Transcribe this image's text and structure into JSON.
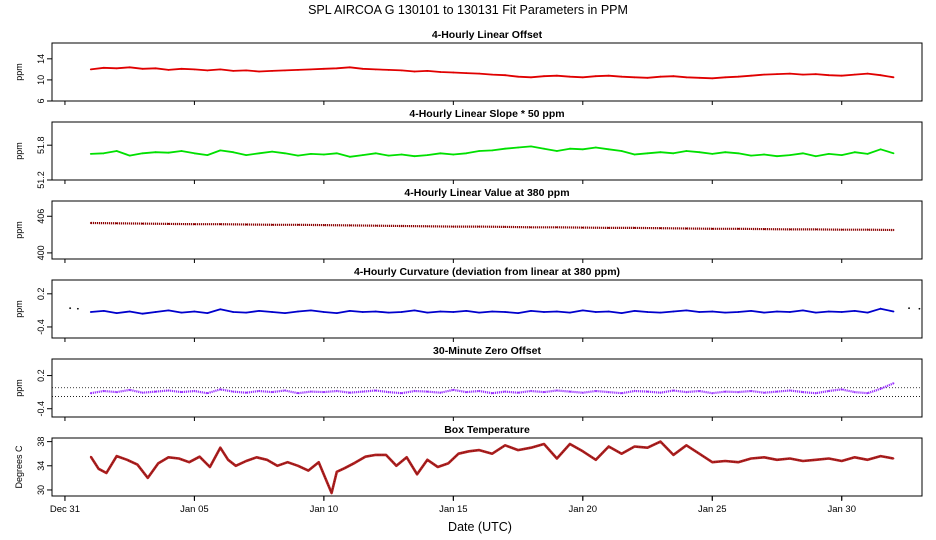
{
  "figure": {
    "title": "SPL    AIRCOA G    130101 to 130131    Fit Parameters in PPM",
    "xlabel": "Date (UTC)",
    "x_ticks": [
      "Dec 31",
      "Jan 05",
      "Jan 10",
      "Jan 15",
      "Jan 20",
      "Jan 25",
      "Jan 30"
    ]
  },
  "chart_data": [
    {
      "type": "line",
      "title": "4-Hourly Linear Offset",
      "ylabel": "ppm",
      "y_ticks": [
        "6",
        "10",
        "14"
      ],
      "ylim": [
        6,
        17
      ],
      "xlim": [
        -0.5,
        33.1
      ],
      "color": "#e00000",
      "style": "line",
      "series": [
        {
          "x": [
            1,
            1.5,
            2,
            2.5,
            3,
            3.5,
            4,
            4.5,
            5,
            5.5,
            6,
            6.5,
            7,
            7.5,
            8,
            8.5,
            9,
            9.5,
            10,
            10.5,
            11,
            11.5,
            12,
            12.5,
            13,
            13.5,
            14,
            14.5,
            15,
            15.5,
            16,
            16.5,
            17,
            17.5,
            18,
            18.5,
            19,
            19.5,
            20,
            20.5,
            21,
            21.5,
            22,
            22.5,
            23,
            23.5,
            24,
            24.5,
            25,
            25.5,
            26,
            26.5,
            27,
            27.5,
            28,
            28.5,
            29,
            29.5,
            30,
            30.5,
            31,
            31.5,
            32
          ],
          "y": [
            12.0,
            12.3,
            12.2,
            12.4,
            12.1,
            12.2,
            11.9,
            12.1,
            12.0,
            11.8,
            12.0,
            11.7,
            11.8,
            11.6,
            11.7,
            11.8,
            11.9,
            12.0,
            12.1,
            12.2,
            12.4,
            12.1,
            12.0,
            11.9,
            11.8,
            11.6,
            11.7,
            11.5,
            11.4,
            11.3,
            11.2,
            11.0,
            10.9,
            10.6,
            10.5,
            10.7,
            10.8,
            10.6,
            10.5,
            10.7,
            10.8,
            10.6,
            10.5,
            10.4,
            10.6,
            10.7,
            10.5,
            10.4,
            10.3,
            10.5,
            10.6,
            10.8,
            11.0,
            11.1,
            11.2,
            11.0,
            11.1,
            10.9,
            10.8,
            11.0,
            11.2,
            10.9,
            10.5
          ]
        }
      ]
    },
    {
      "type": "line",
      "title": "4-Hourly Linear Slope * 50 ppm",
      "ylabel": "ppm",
      "y_ticks": [
        "51.2",
        "51.8"
      ],
      "ylim": [
        51.2,
        52.2
      ],
      "xlim": [
        -0.5,
        33.1
      ],
      "color": "#00e000",
      "style": "line",
      "series": [
        {
          "x": [
            1,
            1.5,
            2,
            2.5,
            3,
            3.5,
            4,
            4.5,
            5,
            5.5,
            6,
            6.5,
            7,
            7.5,
            8,
            8.5,
            9,
            9.5,
            10,
            10.5,
            11,
            11.5,
            12,
            12.5,
            13,
            13.5,
            14,
            14.5,
            15,
            15.5,
            16,
            16.5,
            17,
            17.5,
            18,
            18.5,
            19,
            19.5,
            20,
            20.5,
            21,
            21.5,
            22,
            22.5,
            23,
            23.5,
            24,
            24.5,
            25,
            25.5,
            26,
            26.5,
            27,
            27.5,
            28,
            28.5,
            29,
            29.5,
            30,
            30.5,
            31,
            31.5,
            32
          ],
          "y": [
            51.65,
            51.66,
            51.7,
            51.62,
            51.66,
            51.68,
            51.67,
            51.7,
            51.66,
            51.63,
            51.71,
            51.68,
            51.63,
            51.66,
            51.69,
            51.66,
            51.62,
            51.65,
            51.64,
            51.66,
            51.6,
            51.63,
            51.66,
            51.62,
            51.64,
            51.61,
            51.63,
            51.66,
            51.64,
            51.66,
            51.7,
            51.71,
            51.74,
            51.76,
            51.78,
            51.74,
            51.7,
            51.74,
            51.73,
            51.76,
            51.73,
            51.7,
            51.64,
            51.66,
            51.68,
            51.66,
            51.7,
            51.68,
            51.65,
            51.68,
            51.66,
            51.62,
            51.64,
            51.61,
            51.63,
            51.66,
            51.61,
            51.65,
            51.63,
            51.68,
            51.65,
            51.73,
            51.66
          ]
        }
      ]
    },
    {
      "type": "scatter",
      "title": "4-Hourly Linear Value at 380 ppm",
      "ylabel": "ppm",
      "y_ticks": [
        "400",
        "406"
      ],
      "ylim": [
        399,
        408.5
      ],
      "xlim": [
        -0.5,
        33.1
      ],
      "color": "#8b0000",
      "style": "dense",
      "series": [
        {
          "x": [
            1,
            2,
            3,
            4,
            5,
            6,
            7,
            8,
            9,
            10,
            11,
            12,
            13,
            14,
            15,
            16,
            17,
            18,
            19,
            20,
            21,
            22,
            23,
            24,
            25,
            26,
            27,
            28,
            29,
            30,
            31,
            32
          ],
          "y": [
            404.9,
            404.85,
            404.8,
            404.75,
            404.7,
            404.7,
            404.65,
            404.6,
            404.6,
            404.55,
            404.5,
            404.45,
            404.4,
            404.35,
            404.3,
            404.3,
            404.25,
            404.2,
            404.2,
            404.15,
            404.1,
            404.1,
            404.05,
            404.0,
            403.95,
            403.95,
            403.9,
            403.85,
            403.85,
            403.8,
            403.8,
            403.75
          ]
        }
      ]
    },
    {
      "type": "line",
      "title": "4-Hourly Curvature (deviation from linear at 380 ppm)",
      "ylabel": "ppm",
      "y_ticks": [
        "-0.4",
        "0.2"
      ],
      "ylim": [
        -0.6,
        0.45
      ],
      "xlim": [
        -0.5,
        33.1
      ],
      "color": "#0000cc",
      "style": "line",
      "series": [
        {
          "x": [
            1,
            1.5,
            2,
            2.5,
            3,
            3.5,
            4,
            4.5,
            5,
            5.5,
            6,
            6.5,
            7,
            7.5,
            8,
            8.5,
            9,
            9.5,
            10,
            10.5,
            11,
            11.5,
            12,
            12.5,
            13,
            13.5,
            14,
            14.5,
            15,
            15.5,
            16,
            16.5,
            17,
            17.5,
            18,
            18.5,
            19,
            19.5,
            20,
            20.5,
            21,
            21.5,
            22,
            22.5,
            23,
            23.5,
            24,
            24.5,
            25,
            25.5,
            26,
            26.5,
            27,
            27.5,
            28,
            28.5,
            29,
            29.5,
            30,
            30.5,
            31,
            31.5,
            32
          ],
          "y": [
            -0.13,
            -0.11,
            -0.15,
            -0.12,
            -0.16,
            -0.13,
            -0.1,
            -0.14,
            -0.12,
            -0.15,
            -0.08,
            -0.13,
            -0.14,
            -0.11,
            -0.13,
            -0.15,
            -0.12,
            -0.1,
            -0.13,
            -0.15,
            -0.11,
            -0.13,
            -0.12,
            -0.14,
            -0.13,
            -0.1,
            -0.14,
            -0.12,
            -0.13,
            -0.11,
            -0.14,
            -0.12,
            -0.13,
            -0.15,
            -0.11,
            -0.13,
            -0.12,
            -0.14,
            -0.1,
            -0.13,
            -0.12,
            -0.15,
            -0.11,
            -0.13,
            -0.14,
            -0.12,
            -0.1,
            -0.13,
            -0.12,
            -0.14,
            -0.13,
            -0.11,
            -0.14,
            -0.12,
            -0.13,
            -0.1,
            -0.14,
            -0.12,
            -0.13,
            -0.11,
            -0.14,
            -0.07,
            -0.12
          ]
        }
      ],
      "sparse_points": {
        "x": [
          0.2,
          0.5,
          32.6,
          33.0
        ],
        "y": [
          -0.06,
          -0.07,
          -0.06,
          -0.07
        ]
      }
    },
    {
      "type": "scatter",
      "title": "30-Minute Zero Offset",
      "ylabel": "ppm",
      "y_ticks": [
        "-0.4",
        "0.2"
      ],
      "ylim": [
        -0.55,
        0.5
      ],
      "xlim": [
        -0.5,
        33.1
      ],
      "color": "#9a30ff",
      "style": "dense",
      "reference_lines": [
        -0.02,
        -0.18
      ],
      "series": [
        {
          "x": [
            1,
            1.5,
            2,
            2.5,
            3,
            3.5,
            4,
            4.5,
            5,
            5.5,
            6,
            6.5,
            7,
            7.5,
            8,
            8.5,
            9,
            9.5,
            10,
            10.5,
            11,
            11.5,
            12,
            12.5,
            13,
            13.5,
            14,
            14.5,
            15,
            15.5,
            16,
            16.5,
            17,
            17.5,
            18,
            18.5,
            19,
            19.5,
            20,
            20.5,
            21,
            21.5,
            22,
            22.5,
            23,
            23.5,
            24,
            24.5,
            25,
            25.5,
            26,
            26.5,
            27,
            27.5,
            28,
            28.5,
            29,
            29.5,
            30,
            30.5,
            31,
            31.5,
            32
          ],
          "y": [
            -0.12,
            -0.08,
            -0.1,
            -0.06,
            -0.11,
            -0.09,
            -0.07,
            -0.1,
            -0.08,
            -0.12,
            -0.05,
            -0.09,
            -0.11,
            -0.08,
            -0.1,
            -0.07,
            -0.12,
            -0.09,
            -0.1,
            -0.08,
            -0.11,
            -0.09,
            -0.07,
            -0.1,
            -0.12,
            -0.08,
            -0.09,
            -0.11,
            -0.06,
            -0.1,
            -0.08,
            -0.12,
            -0.09,
            -0.11,
            -0.08,
            -0.1,
            -0.07,
            -0.09,
            -0.11,
            -0.08,
            -0.1,
            -0.12,
            -0.08,
            -0.09,
            -0.11,
            -0.07,
            -0.1,
            -0.08,
            -0.12,
            -0.09,
            -0.1,
            -0.08,
            -0.11,
            -0.09,
            -0.07,
            -0.1,
            -0.12,
            -0.08,
            -0.05,
            -0.1,
            -0.12,
            -0.04,
            0.06
          ]
        }
      ]
    },
    {
      "type": "line",
      "title": "Box Temperature",
      "ylabel": "Degrees C",
      "y_ticks": [
        "30",
        "34",
        "38"
      ],
      "ylim": [
        29,
        38.6
      ],
      "xlim": [
        -0.5,
        33.1
      ],
      "color": "#b02020",
      "style": "thick",
      "series": [
        {
          "x": [
            1,
            1.3,
            1.6,
            2,
            2.4,
            2.8,
            3.2,
            3.6,
            4,
            4.4,
            4.8,
            5.2,
            5.6,
            6,
            6.3,
            6.6,
            7,
            7.4,
            7.8,
            8.2,
            8.6,
            9,
            9.4,
            9.8,
            10.1,
            10.3,
            10.5,
            10.8,
            11.2,
            11.6,
            12,
            12.4,
            12.8,
            13.2,
            13.6,
            14,
            14.4,
            14.8,
            15.2,
            15.6,
            16,
            16.5,
            17,
            17.5,
            18,
            18.5,
            19,
            19.5,
            20,
            20.5,
            21,
            21.5,
            22,
            22.5,
            23,
            23.5,
            24,
            24.5,
            25,
            25.5,
            26,
            26.5,
            27,
            27.5,
            28,
            28.5,
            29,
            29.5,
            30,
            30.5,
            31,
            31.5,
            32
          ],
          "y": [
            35.5,
            33.5,
            32.8,
            35.6,
            35.0,
            34.2,
            32.0,
            34.4,
            35.4,
            35.2,
            34.6,
            35.5,
            33.8,
            37.0,
            35.0,
            34.0,
            34.8,
            35.4,
            35.0,
            34.0,
            34.6,
            34.0,
            33.2,
            34.6,
            31.5,
            29.5,
            33.0,
            33.6,
            34.5,
            35.5,
            35.8,
            35.8,
            34.0,
            35.4,
            32.6,
            35.0,
            33.8,
            34.4,
            36.0,
            36.4,
            36.6,
            36.0,
            37.4,
            36.6,
            37.0,
            37.6,
            35.2,
            37.6,
            36.4,
            35.0,
            37.2,
            36.0,
            37.2,
            37.0,
            38.0,
            35.8,
            37.4,
            36.0,
            34.6,
            34.8,
            34.6,
            35.2,
            35.4,
            35.0,
            35.2,
            34.8,
            35.0,
            35.2,
            34.8,
            35.4,
            35.0,
            35.6,
            35.2
          ]
        }
      ]
    }
  ]
}
